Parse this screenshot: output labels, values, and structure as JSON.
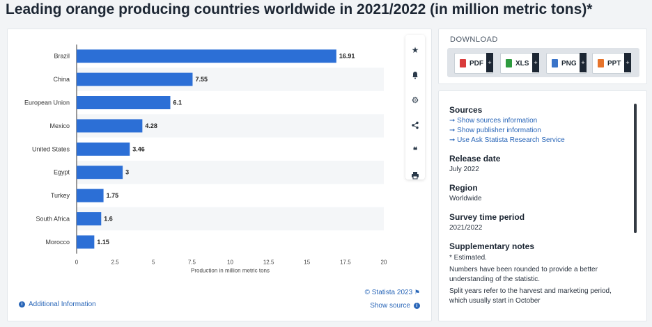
{
  "page": {
    "title": "Leading orange producing countries worldwide in 2021/2022 (in million metric tons)*"
  },
  "chart_data": {
    "type": "bar",
    "orientation": "horizontal",
    "categories": [
      "Brazil",
      "China",
      "European Union",
      "Mexico",
      "United States",
      "Egypt",
      "Turkey",
      "South Africa",
      "Morocco"
    ],
    "values": [
      16.91,
      7.55,
      6.1,
      4.28,
      3.46,
      3,
      1.75,
      1.6,
      1.15
    ],
    "value_labels": [
      "16.91",
      "7.55",
      "6.1",
      "4.28",
      "3.46",
      "3",
      "1.75",
      "1.6",
      "1.15"
    ],
    "xlabel": "Production in million metric tons",
    "xlim": [
      0,
      20
    ],
    "xticks": [
      "0",
      "2.5",
      "5",
      "7.5",
      "10",
      "12.5",
      "15",
      "17.5",
      "20"
    ],
    "bar_color": "#2c6fd6",
    "band_color": "#f4f6f8",
    "grid": false
  },
  "chart_footer": {
    "additional_info": "Additional Information",
    "copyright": "© Statista 2023",
    "show_source": "Show source"
  },
  "toolbar": {
    "icons": [
      "star-icon",
      "bell-icon",
      "gear-icon",
      "share-icon",
      "quote-icon",
      "print-icon"
    ]
  },
  "download": {
    "label": "DOWNLOAD",
    "buttons": [
      {
        "label": "PDF",
        "color": "#d93b3b"
      },
      {
        "label": "XLS",
        "color": "#2e9b3f"
      },
      {
        "label": "PNG",
        "color": "#3a74c9"
      },
      {
        "label": "PPT",
        "color": "#e6732b"
      }
    ]
  },
  "info": {
    "sources_heading": "Sources",
    "sources_links": [
      "Show sources information",
      "Show publisher information",
      "Use Ask Statista Research Service"
    ],
    "release_date_heading": "Release date",
    "release_date": "July 2022",
    "region_heading": "Region",
    "region": "Worldwide",
    "survey_heading": "Survey time period",
    "survey": "2021/2022",
    "notes_heading": "Supplementary notes",
    "notes": [
      "* Estimated.",
      "Numbers have been rounded to provide a better understanding of the statistic.",
      "Split years refer to the harvest and marketing period, which usually start in October"
    ]
  },
  "colors": {
    "accent": "#2966b8",
    "title": "#1c2633"
  }
}
